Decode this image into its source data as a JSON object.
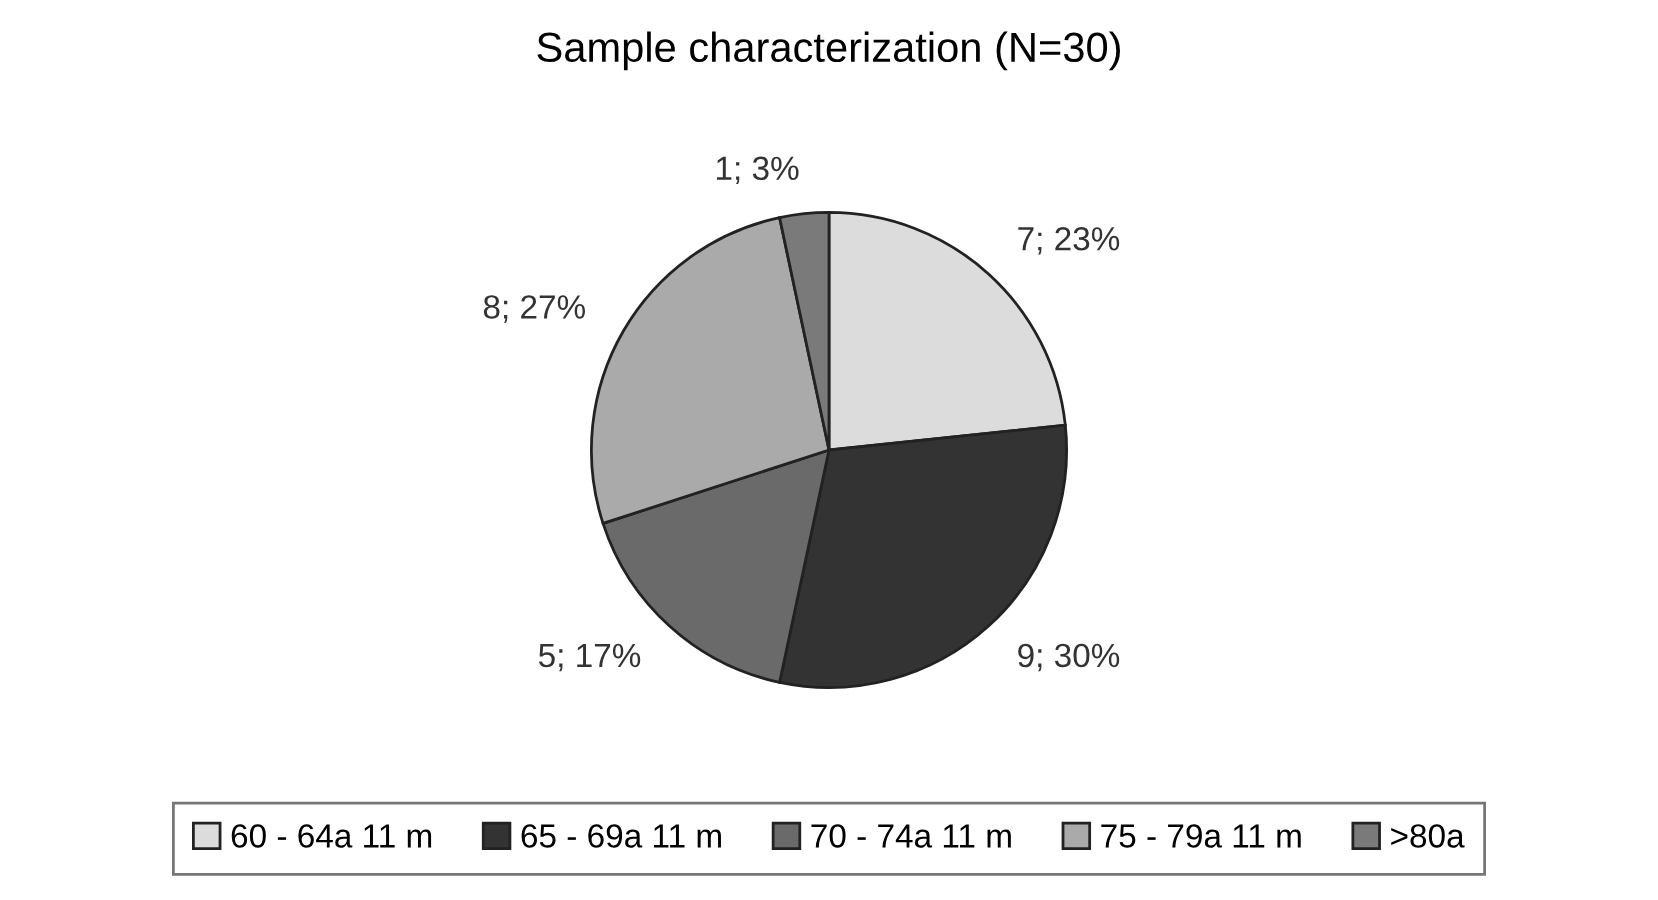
{
  "chart_data": {
    "type": "pie",
    "title": "Sample characterization (N=30)",
    "categories": [
      "60 - 64a 11 m",
      "65 - 69a 11 m",
      "70 - 74a 11 m",
      "75 - 79a 11 m",
      ">80a"
    ],
    "values": [
      7,
      9,
      5,
      8,
      1
    ],
    "value_labels": [
      "7; 23%",
      "9; 30%",
      "5; 17%",
      "8; 27%",
      "1; 3%"
    ],
    "colors": [
      "#dcdcdc",
      "#333333",
      "#6a6a6a",
      "#aaaaaa",
      "#7a7a7a"
    ],
    "legend": "bottom"
  }
}
